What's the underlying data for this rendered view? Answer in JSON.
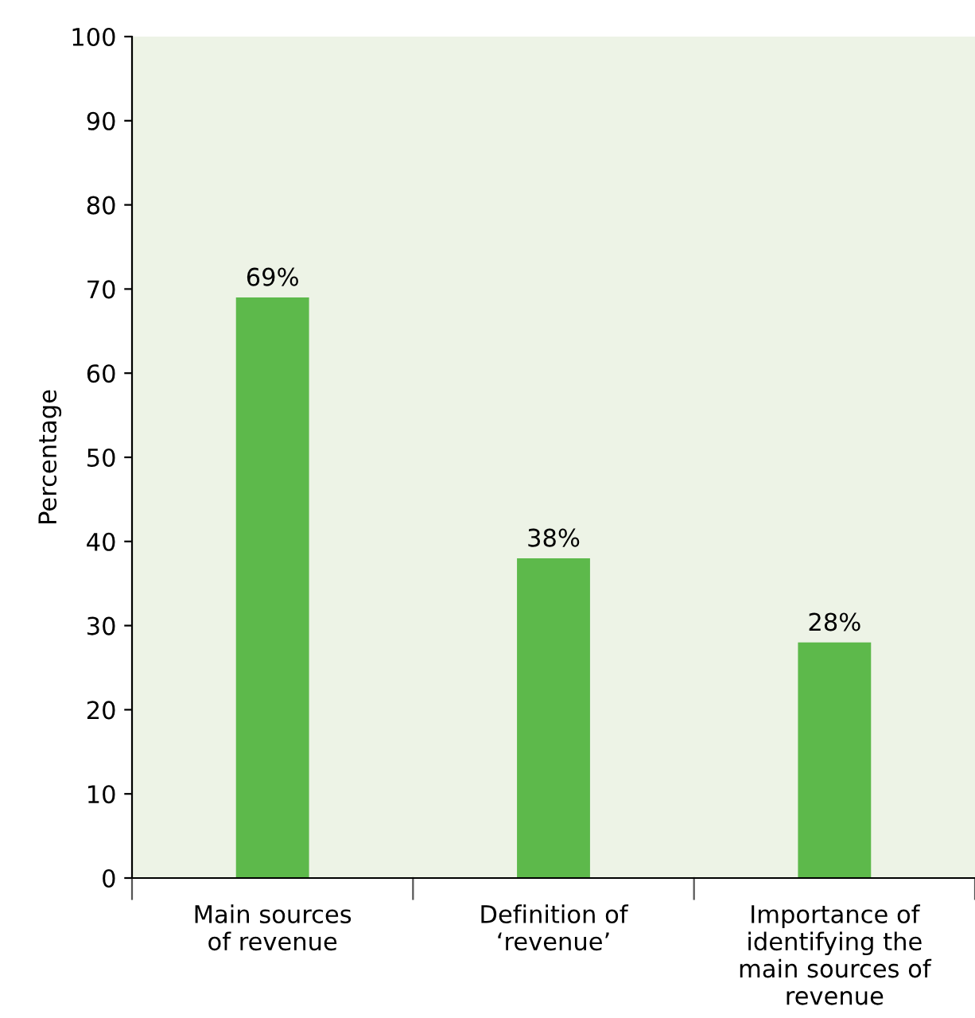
{
  "chart_data": {
    "type": "bar",
    "ylabel": "Percentage",
    "categories": [
      "Main sources\nof revenue",
      "Definition of\n‘revenue’",
      "Importance of\nidentifying the\nmain sources of\nrevenue"
    ],
    "values": [
      69,
      38,
      28
    ],
    "value_labels": [
      "69%",
      "38%",
      "28%"
    ],
    "color": "#5db94b",
    "ylim": [
      0,
      100
    ],
    "yticks": [
      0,
      10,
      20,
      30,
      40,
      50,
      60,
      70,
      80,
      90,
      100
    ],
    "grid": false,
    "legend": false
  }
}
